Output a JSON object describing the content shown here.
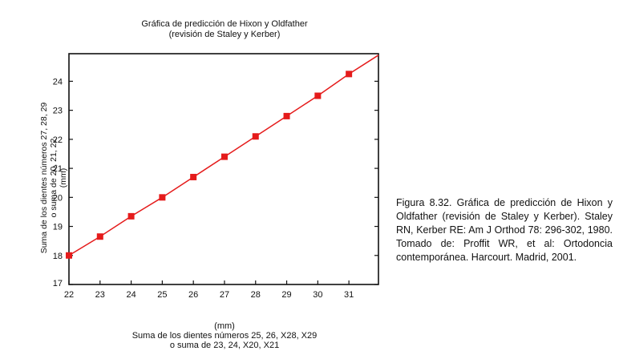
{
  "chart_data": {
    "type": "line",
    "title": "Gráfica de predicción de Hixon y Oldfather",
    "subtitle": "(revisión de Staley y Kerber)",
    "ylabel_lines": [
      "Suma de los dientes números 27, 28, 29",
      "o suma de 20, 21, 22",
      "(mm)"
    ],
    "xlabel_lines": [
      "(mm)",
      "Suma de los dientes números 25, 26, X28, X29",
      "o suma de 23, 24, X20, X21"
    ],
    "xlim": [
      22,
      31.95
    ],
    "ylim": [
      17,
      24.95
    ],
    "x_ticks": [
      "22",
      "23",
      "24",
      "25",
      "26",
      "27",
      "28",
      "29",
      "30",
      "31"
    ],
    "y_ticks": [
      "17",
      "18",
      "19",
      "20",
      "21",
      "22",
      "23",
      "24"
    ],
    "grid": false,
    "colors": {
      "line": "#e51b1b",
      "marker": "#e51b1b",
      "axes": "#111111"
    },
    "series": [
      {
        "x": [
          22,
          23,
          24,
          25,
          26,
          27,
          28,
          29,
          30,
          31
        ],
        "y": [
          18.0,
          18.65,
          19.35,
          20.0,
          20.7,
          21.4,
          22.1,
          22.8,
          23.5,
          24.25
        ],
        "line_x_end": 31.95,
        "line_y_end": 24.9,
        "marker": "square"
      }
    ]
  },
  "caption": "Figura 8.32. Gráfica de predicción de Hixon y Oldfather (revisión de Staley y Kerber). Staley RN, Kerber RE: Am J Orthod 78: 296-302, 1980. Tomado de: Proffit WR, et al: Ortodoncia contemporánea. Harcourt. Madrid, 2001."
}
